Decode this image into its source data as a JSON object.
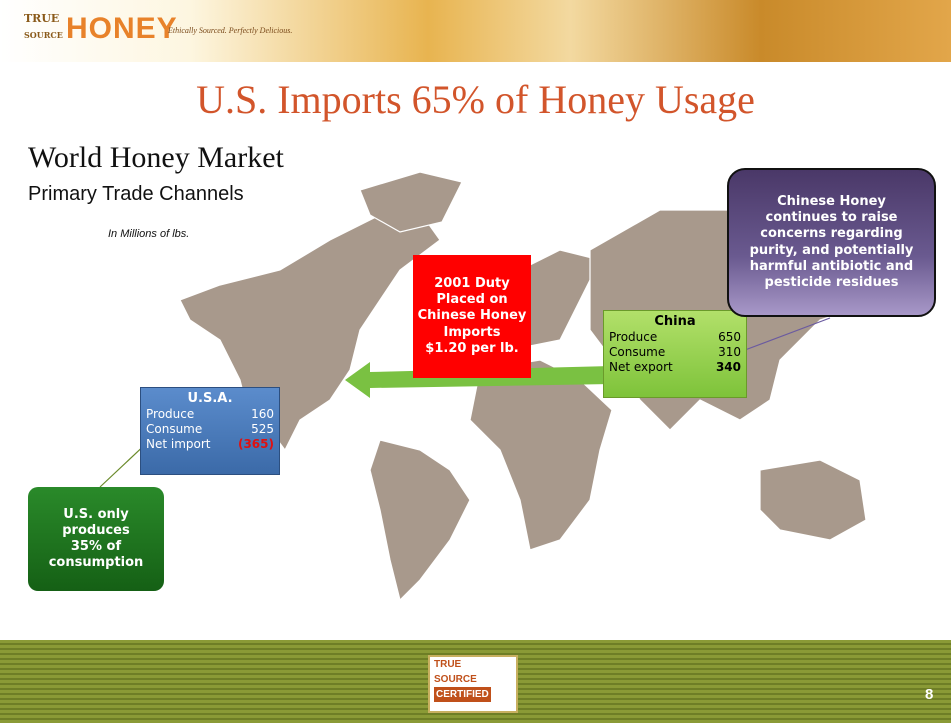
{
  "header": {
    "logo_top": "TRUE",
    "logo_bottom": "SOURCE",
    "logo_word": "HONEY",
    "tagline": "Ethically Sourced. Perfectly Delicious."
  },
  "title": "U.S. Imports 65% of Honey Usage",
  "subtitle": "World Honey Market",
  "section": "Primary Trade Channels",
  "unit_note": "In Millions of lbs.",
  "usa": {
    "name": "U.S.A.",
    "rows": [
      [
        "Produce",
        "160"
      ],
      [
        "Consume",
        "525"
      ],
      [
        "Net import",
        "(365)"
      ]
    ]
  },
  "china": {
    "name": "China",
    "rows": [
      [
        "Produce",
        "650"
      ],
      [
        "Consume",
        "310"
      ],
      [
        "Net export",
        "340"
      ]
    ]
  },
  "duty_note": [
    "2001 Duty",
    "Placed on",
    "Chinese Honey",
    "Imports",
    "$1.20 per lb."
  ],
  "china_note": [
    "Chinese Honey",
    "continues to raise",
    "concerns regarding",
    "purity, and potentially",
    "harmful antibiotic and",
    "pesticide residues"
  ],
  "usa_note": [
    "U.S. only",
    "produces",
    "35% of",
    "consumption"
  ],
  "footer": {
    "badge_top": "TRUE",
    "badge_mid": "SOURCE",
    "badge_bottom": "CERTIFIED",
    "page": "8"
  }
}
